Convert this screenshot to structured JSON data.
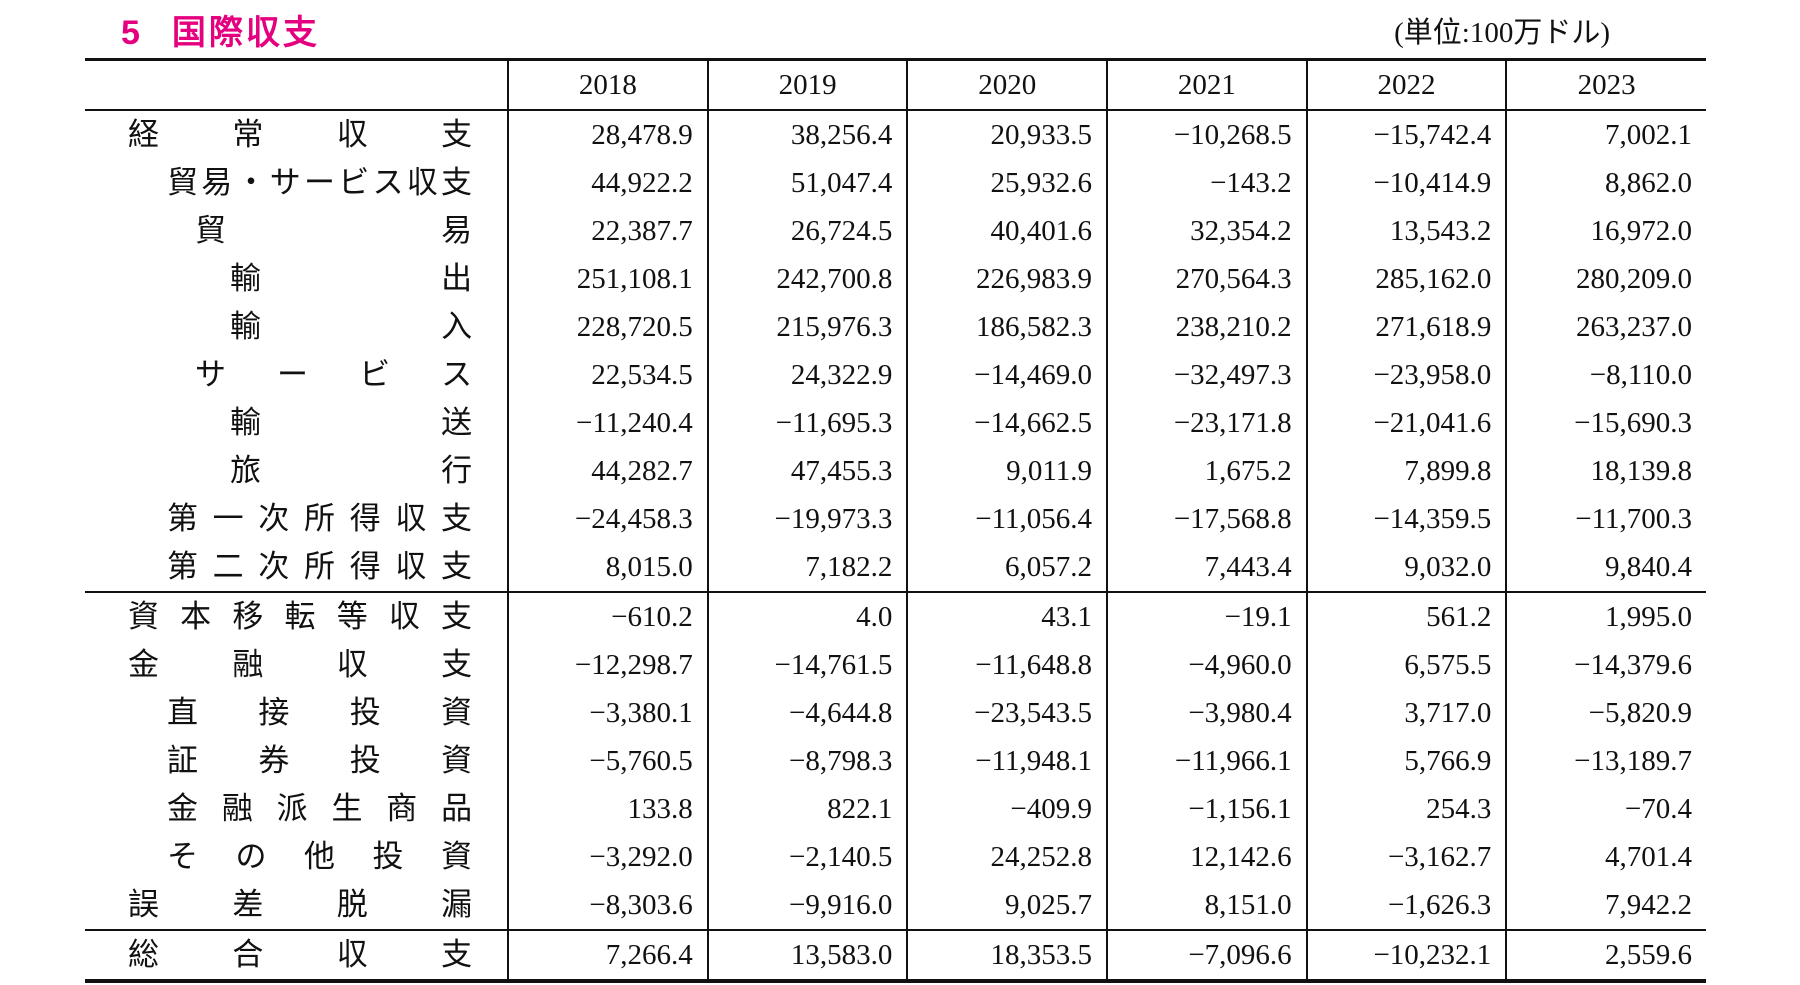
{
  "page": {
    "section_number": "5",
    "title": "国際収支",
    "unit_note": "(単位:100万ドル)",
    "accent_color": "#e4007f",
    "border_color": "#111111"
  },
  "table": {
    "corner_blank": "",
    "years": [
      "2018",
      "2019",
      "2020",
      "2021",
      "2022",
      "2023"
    ],
    "rows": [
      {
        "label": "経常収支",
        "indent": 0,
        "section_start": false,
        "values": [
          "28,478.9",
          "38,256.4",
          "20,933.5",
          "−10,268.5",
          "−15,742.4",
          "7,002.1"
        ]
      },
      {
        "label": "貿易・サービス収支",
        "indent": 1,
        "section_start": false,
        "values": [
          "44,922.2",
          "51,047.4",
          "25,932.6",
          "−143.2",
          "−10,414.9",
          "8,862.0"
        ]
      },
      {
        "label": "貿易",
        "indent": 2,
        "section_start": false,
        "values": [
          "22,387.7",
          "26,724.5",
          "40,401.6",
          "32,354.2",
          "13,543.2",
          "16,972.0"
        ]
      },
      {
        "label": "輸出",
        "indent": 3,
        "section_start": false,
        "values": [
          "251,108.1",
          "242,700.8",
          "226,983.9",
          "270,564.3",
          "285,162.0",
          "280,209.0"
        ]
      },
      {
        "label": "輸入",
        "indent": 3,
        "section_start": false,
        "values": [
          "228,720.5",
          "215,976.3",
          "186,582.3",
          "238,210.2",
          "271,618.9",
          "263,237.0"
        ]
      },
      {
        "label": "サービス",
        "indent": 2,
        "section_start": false,
        "values": [
          "22,534.5",
          "24,322.9",
          "−14,469.0",
          "−32,497.3",
          "−23,958.0",
          "−8,110.0"
        ]
      },
      {
        "label": "輸送",
        "indent": 3,
        "section_start": false,
        "values": [
          "−11,240.4",
          "−11,695.3",
          "−14,662.5",
          "−23,171.8",
          "−21,041.6",
          "−15,690.3"
        ]
      },
      {
        "label": "旅行",
        "indent": 3,
        "section_start": false,
        "values": [
          "44,282.7",
          "47,455.3",
          "9,011.9",
          "1,675.2",
          "7,899.8",
          "18,139.8"
        ]
      },
      {
        "label": "第一次所得収支",
        "indent": 1,
        "section_start": false,
        "values": [
          "−24,458.3",
          "−19,973.3",
          "−11,056.4",
          "−17,568.8",
          "−14,359.5",
          "−11,700.3"
        ]
      },
      {
        "label": "第二次所得収支",
        "indent": 1,
        "section_start": false,
        "values": [
          "8,015.0",
          "7,182.2",
          "6,057.2",
          "7,443.4",
          "9,032.0",
          "9,840.4"
        ]
      },
      {
        "label": "資本移転等収支",
        "indent": 0,
        "section_start": true,
        "values": [
          "−610.2",
          "4.0",
          "43.1",
          "−19.1",
          "561.2",
          "1,995.0"
        ]
      },
      {
        "label": "金融収支",
        "indent": 0,
        "section_start": false,
        "values": [
          "−12,298.7",
          "−14,761.5",
          "−11,648.8",
          "−4,960.0",
          "6,575.5",
          "−14,379.6"
        ]
      },
      {
        "label": "直接投資",
        "indent": 1,
        "section_start": false,
        "values": [
          "−3,380.1",
          "−4,644.8",
          "−23,543.5",
          "−3,980.4",
          "3,717.0",
          "−5,820.9"
        ]
      },
      {
        "label": "証券投資",
        "indent": 1,
        "section_start": false,
        "values": [
          "−5,760.5",
          "−8,798.3",
          "−11,948.1",
          "−11,966.1",
          "5,766.9",
          "−13,189.7"
        ]
      },
      {
        "label": "金融派生商品",
        "indent": 1,
        "section_start": false,
        "values": [
          "133.8",
          "822.1",
          "−409.9",
          "−1,156.1",
          "254.3",
          "−70.4"
        ]
      },
      {
        "label": "その他投資",
        "indent": 1,
        "section_start": false,
        "values": [
          "−3,292.0",
          "−2,140.5",
          "24,252.8",
          "12,142.6",
          "−3,162.7",
          "4,701.4"
        ]
      },
      {
        "label": "誤差脱漏",
        "indent": 0,
        "section_start": false,
        "values": [
          "−8,303.6",
          "−9,916.0",
          "9,025.7",
          "8,151.0",
          "−1,626.3",
          "7,942.2"
        ]
      },
      {
        "label": "総合収支",
        "indent": 0,
        "section_start": true,
        "values": [
          "7,266.4",
          "13,583.0",
          "18,353.5",
          "−7,096.6",
          "−10,232.1",
          "2,559.6"
        ]
      }
    ]
  }
}
